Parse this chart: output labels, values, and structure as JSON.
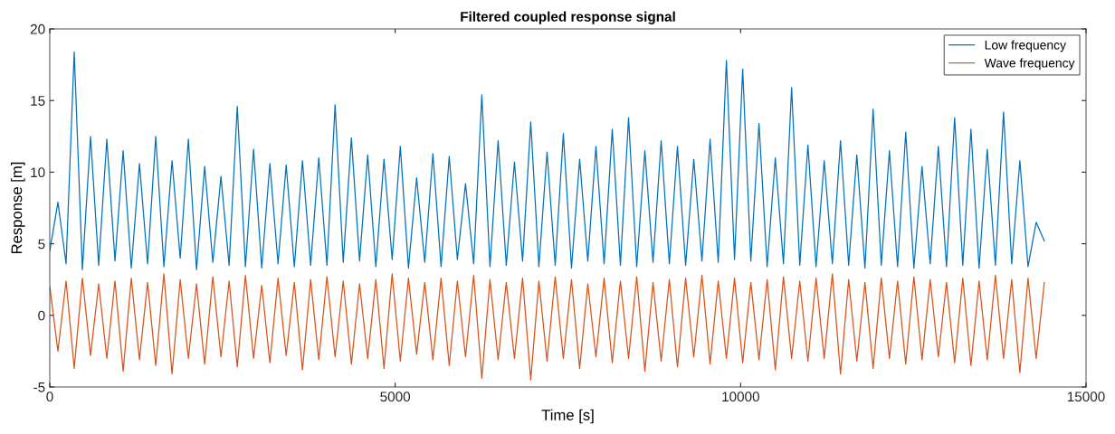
{
  "chart_data": {
    "type": "line",
    "title": "Filtered coupled response signal",
    "xlabel": "Time [s]",
    "ylabel": "Response [m]",
    "x": [
      0,
      118,
      236,
      354,
      472,
      590,
      708,
      826,
      944,
      1062,
      1180,
      1298,
      1416,
      1534,
      1652,
      1770,
      1888,
      2006,
      2124,
      2242,
      2360,
      2478,
      2596,
      2714,
      2832,
      2950,
      3068,
      3186,
      3304,
      3422,
      3540,
      3658,
      3776,
      3894,
      4012,
      4130,
      4248,
      4366,
      4484,
      4602,
      4720,
      4838,
      4956,
      5074,
      5192,
      5310,
      5428,
      5546,
      5664,
      5782,
      5900,
      6018,
      6136,
      6254,
      6372,
      6490,
      6608,
      6726,
      6844,
      6962,
      7080,
      7198,
      7316,
      7434,
      7552,
      7670,
      7788,
      7906,
      8024,
      8142,
      8260,
      8378,
      8496,
      8614,
      8732,
      8850,
      8968,
      9086,
      9204,
      9322,
      9440,
      9558,
      9676,
      9794,
      9912,
      10030,
      10148,
      10266,
      10384,
      10502,
      10620,
      10738,
      10856,
      10974,
      11092,
      11210,
      11328,
      11446,
      11564,
      11682,
      11800,
      11918,
      12036,
      12154,
      12272,
      12390,
      12508,
      12626,
      12744,
      12862,
      12980,
      13098,
      13216,
      13334,
      13452,
      13570,
      13688,
      13806,
      13924,
      14042,
      14160,
      14278,
      14396
    ],
    "series": [
      {
        "name": "Low frequency",
        "color": "#0072bd",
        "values": [
          4.5,
          7.9,
          3.6,
          18.4,
          3.2,
          12.5,
          3.5,
          12.3,
          3.8,
          11.5,
          3.3,
          10.6,
          3.6,
          12.5,
          3.4,
          10.8,
          4.0,
          12.3,
          3.2,
          10.4,
          3.7,
          9.7,
          3.5,
          14.6,
          3.4,
          11.6,
          3.3,
          10.6,
          3.6,
          10.5,
          3.4,
          10.8,
          3.5,
          11.0,
          3.5,
          14.7,
          3.7,
          12.4,
          3.8,
          11.2,
          3.4,
          10.9,
          3.9,
          11.8,
          3.3,
          9.6,
          3.7,
          11.3,
          3.4,
          11.1,
          3.9,
          9.2,
          3.6,
          15.4,
          3.4,
          12.2,
          3.5,
          10.7,
          3.8,
          13.5,
          3.4,
          11.4,
          3.5,
          12.7,
          3.3,
          10.9,
          3.8,
          11.8,
          3.6,
          13.0,
          3.5,
          13.8,
          3.4,
          11.5,
          3.7,
          12.2,
          3.6,
          11.8,
          3.5,
          10.9,
          3.8,
          12.3,
          3.7,
          17.8,
          3.9,
          17.2,
          3.8,
          13.4,
          3.4,
          11.0,
          3.6,
          15.9,
          3.5,
          11.9,
          3.4,
          10.8,
          3.6,
          12.2,
          3.5,
          11.2,
          3.3,
          14.4,
          3.5,
          11.5,
          3.4,
          12.8,
          3.3,
          10.4,
          3.6,
          11.8,
          3.4,
          13.8,
          3.5,
          13.0,
          3.3,
          11.6,
          3.5,
          14.2,
          3.6,
          10.8,
          3.4,
          6.5,
          5.2
        ]
      },
      {
        "name": "Wave frequency",
        "color": "#d95319",
        "values": [
          2.0,
          -2.5,
          2.4,
          -3.7,
          2.6,
          -2.8,
          2.2,
          -3.0,
          2.4,
          -3.9,
          2.6,
          -3.1,
          2.3,
          -3.5,
          2.9,
          -4.1,
          2.5,
          -3.0,
          2.2,
          -3.4,
          2.7,
          -2.9,
          2.4,
          -3.6,
          2.8,
          -3.0,
          2.1,
          -3.3,
          2.6,
          -2.8,
          2.3,
          -3.8,
          2.5,
          -3.1,
          2.7,
          -2.9,
          2.4,
          -3.4,
          2.2,
          -3.0,
          2.5,
          -3.7,
          2.9,
          -3.2,
          2.6,
          -2.7,
          2.3,
          -3.1,
          2.6,
          -3.5,
          2.4,
          -2.9,
          2.8,
          -4.4,
          2.5,
          -3.1,
          2.3,
          -3.0,
          2.6,
          -4.5,
          2.4,
          -3.2,
          2.7,
          -3.0,
          2.5,
          -3.7,
          2.2,
          -2.9,
          2.6,
          -3.3,
          2.4,
          -3.0,
          2.7,
          -3.9,
          2.3,
          -3.2,
          2.5,
          -3.6,
          2.6,
          -2.9,
          2.8,
          -3.4,
          2.4,
          -3.0,
          2.6,
          -3.3,
          2.3,
          -3.1,
          2.5,
          -3.8,
          2.7,
          -3.0,
          2.4,
          -3.2,
          2.6,
          -3.0,
          2.9,
          -4.1,
          2.5,
          -3.2,
          2.3,
          -3.7,
          2.6,
          -3.0,
          2.4,
          -3.4,
          2.7,
          -3.1,
          2.5,
          -2.9,
          2.3,
          -3.3,
          2.6,
          -3.5,
          2.4,
          -3.1,
          2.8,
          -3.0,
          2.5,
          -4.0,
          2.6,
          -3.0,
          2.3
        ]
      }
    ],
    "xlim": [
      0,
      15000
    ],
    "xticks": [
      0,
      5000,
      10000,
      15000
    ],
    "ylim": [
      -5,
      20
    ],
    "yticks": [
      -5,
      0,
      5,
      10,
      15,
      20
    ],
    "grid": false,
    "legend": "top right"
  }
}
